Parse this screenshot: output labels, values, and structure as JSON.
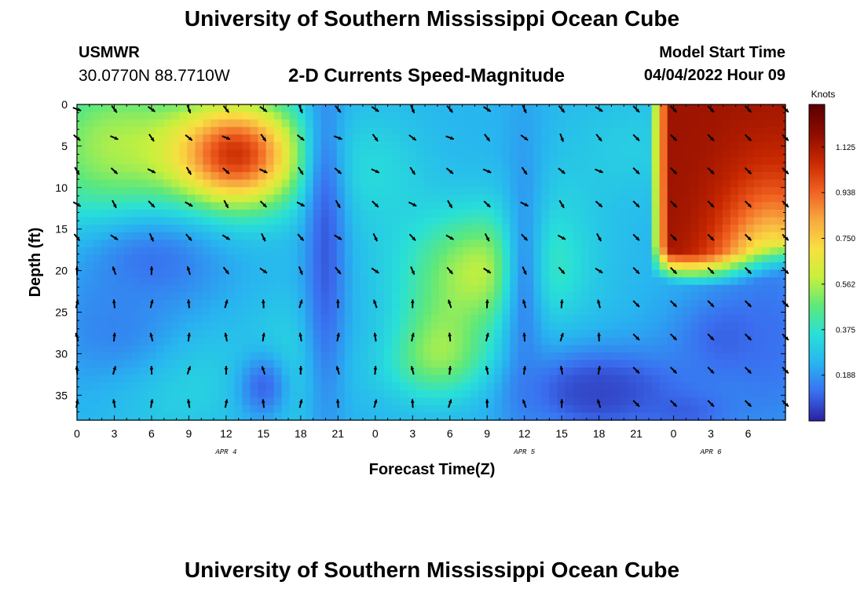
{
  "header": {
    "title": "University of Southern Mississippi Ocean Cube",
    "station": "USMWR",
    "coords": "30.0770N  88.7710W",
    "subtitle": "2-D Currents Speed-Magnitude",
    "start_label": "Model Start Time",
    "start_value": "04/04/2022 Hour 09"
  },
  "footer": {
    "title": "University of Southern Mississippi Ocean Cube"
  },
  "chart_data": {
    "type": "heatmap",
    "xlabel": "Forecast Time(Z)",
    "ylabel": "Depth (ft)",
    "x_tick_labels": [
      "0",
      "3",
      "6",
      "9",
      "12",
      "15",
      "18",
      "21",
      "0",
      "3",
      "6",
      "9",
      "12",
      "15",
      "18",
      "21",
      "0",
      "3",
      "6"
    ],
    "x_date_labels": [
      {
        "label": "APR 4",
        "tick_index": 4
      },
      {
        "label": "APR 5",
        "tick_index": 12
      },
      {
        "label": "APR 6",
        "tick_index": 17
      }
    ],
    "y_ticks": [
      0,
      5,
      10,
      15,
      20,
      25,
      30,
      35
    ],
    "ylim": [
      0,
      38
    ],
    "colorbar": {
      "unit": "Knots",
      "range": [
        0,
        1.3
      ],
      "tick_values": [
        0.188,
        0.375,
        0.562,
        0.75,
        0.938,
        1.125
      ],
      "tick_labels": [
        "0.188",
        "0.375",
        "0.562",
        "0.750",
        "0.938",
        "1.125"
      ],
      "colormap": [
        "#2a1fa0",
        "#3a6ff0",
        "#28b4f0",
        "#28e0d8",
        "#5ee87a",
        "#c8f03c",
        "#f8e040",
        "#f8a840",
        "#f06020",
        "#c82800",
        "#8c0c00",
        "#5a0000"
      ]
    },
    "speed_hotspots": [
      {
        "hour": 13,
        "depth": 6,
        "value": 1.0,
        "sx": 3.5,
        "sy": 4.5
      },
      {
        "hour": 3,
        "depth": 5,
        "value": 0.55,
        "sx": 5,
        "sy": 7
      },
      {
        "hour": 33,
        "depth": 20,
        "value": 0.58,
        "sx": 4.5,
        "sy": 5
      },
      {
        "hour": 29,
        "depth": 29,
        "value": 0.44,
        "sx": 2.5,
        "sy": 4
      },
      {
        "hour": 31,
        "depth": 32,
        "value": 0.38,
        "sx": 4.5,
        "sy": 3
      },
      {
        "hour": 8,
        "depth": 33,
        "value": 0.33,
        "sx": 4,
        "sy": 5
      },
      {
        "hour": 24,
        "depth": 8,
        "value": 0.33,
        "sx": 3,
        "sy": 5
      },
      {
        "hour": 38,
        "depth": 12,
        "value": 0.28,
        "sx": 3,
        "sy": 5
      },
      {
        "hour": 45,
        "depth": 5,
        "value": 0.3,
        "sx": 4,
        "sy": 5
      },
      {
        "hour": 17,
        "depth": 32,
        "value": 0.33,
        "sx": 2.5,
        "sy": 6
      }
    ],
    "speed_lowspots": [
      {
        "hour": 6,
        "depth": 19,
        "value": 0.1,
        "sx": 4,
        "sy": 4
      },
      {
        "hour": 15,
        "depth": 34,
        "value": 0.07,
        "sx": 1.5,
        "sy": 3
      },
      {
        "hour": 20,
        "depth": 17,
        "value": 0.06,
        "sx": 1.2,
        "sy": 16
      },
      {
        "hour": 42,
        "depth": 35,
        "value": 0.02,
        "sx": 3,
        "sy": 2.5
      },
      {
        "hour": 42,
        "depth": 34,
        "value": 0.06,
        "sx": 6,
        "sy": 3.5
      },
      {
        "hour": 36,
        "depth": 22,
        "value": 0.12,
        "sx": 1.3,
        "sy": 14
      },
      {
        "hour": 53,
        "depth": 28,
        "value": 0.06,
        "sx": 3.5,
        "sy": 4
      },
      {
        "hour": 49,
        "depth": 37,
        "value": 0.08,
        "sx": 3,
        "sy": 2
      },
      {
        "hour": 3,
        "depth": 27,
        "value": 0.14,
        "sx": 4,
        "sy": 5
      },
      {
        "hour": 56,
        "depth": 28,
        "value": 0.12,
        "sx": 3,
        "sy": 10
      }
    ],
    "speed_maximum_region": {
      "hour_start": 46,
      "hour_end": 57,
      "depth_top": 0,
      "depth_bottom": 22,
      "value": 1.15
    },
    "arrow_grid": {
      "hours": [
        0,
        3,
        6,
        9,
        12,
        15,
        18,
        21,
        24,
        27,
        30,
        33,
        36,
        39,
        42,
        45,
        48,
        51,
        54,
        57
      ],
      "depths": [
        0,
        4,
        8,
        12,
        16,
        20,
        24,
        28,
        32,
        36
      ],
      "upper_zone_direction_deg": 135,
      "lower_zone_direction_deg": 0,
      "right_zone_direction_deg": 135
    }
  }
}
